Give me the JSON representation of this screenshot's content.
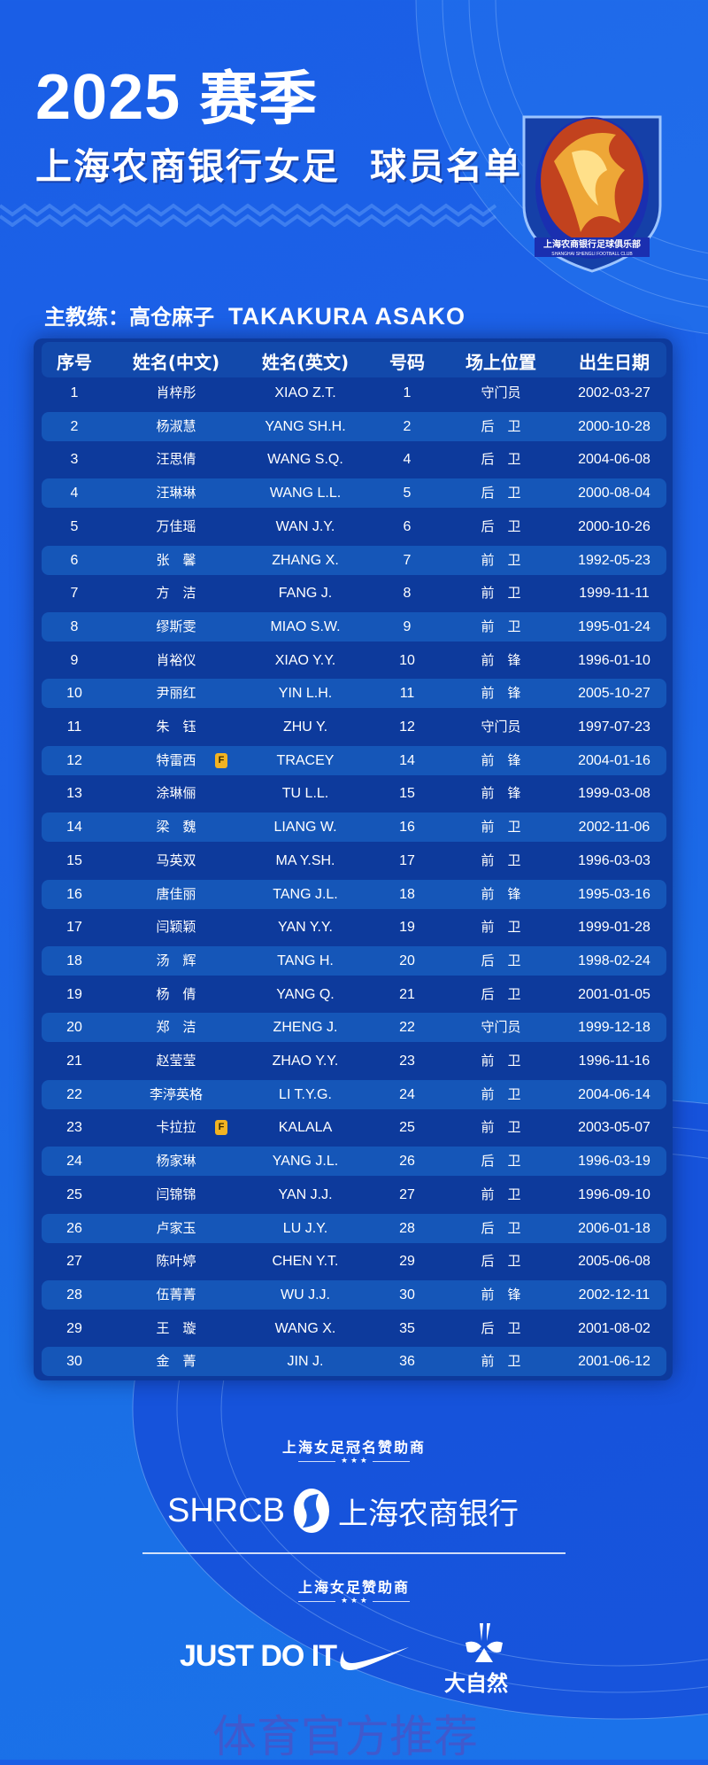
{
  "header": {
    "season_year": "2025",
    "season_label": "赛季",
    "team_name": "上海农商银行女足",
    "roster_label": "球员名单",
    "crest_text": "上海农商银行足球俱乐部",
    "crest_subtext": "SHANGHAI SHENGLI FOOTBALL CLUB"
  },
  "coach": {
    "label": "主教练：高仓麻子",
    "name_en": "TAKAKURA ASAKO"
  },
  "table": {
    "columns": [
      "序号",
      "姓名(中文)",
      "姓名(英文)",
      "号码",
      "场上位置",
      "出生日期"
    ],
    "foreign_badge": "F",
    "rows": [
      {
        "no": "1",
        "cn": "肖梓彤",
        "en": "XIAO Z.T.",
        "num": "1",
        "pos": "守门员",
        "dob": "2002-03-27"
      },
      {
        "no": "2",
        "cn": "杨淑慧",
        "en": "YANG SH.H.",
        "num": "2",
        "pos": "后　卫",
        "dob": "2000-10-28"
      },
      {
        "no": "3",
        "cn": "汪思倩",
        "en": "WANG S.Q.",
        "num": "4",
        "pos": "后　卫",
        "dob": "2004-06-08"
      },
      {
        "no": "4",
        "cn": "汪琳琳",
        "en": "WANG L.L.",
        "num": "5",
        "pos": "后　卫",
        "dob": "2000-08-04"
      },
      {
        "no": "5",
        "cn": "万佳瑶",
        "en": "WAN J.Y.",
        "num": "6",
        "pos": "后　卫",
        "dob": "2000-10-26"
      },
      {
        "no": "6",
        "cn": "张　馨",
        "en": "ZHANG X.",
        "num": "7",
        "pos": "前　卫",
        "dob": "1992-05-23"
      },
      {
        "no": "7",
        "cn": "方　洁",
        "en": "FANG J.",
        "num": "8",
        "pos": "前　卫",
        "dob": "1999-11-11"
      },
      {
        "no": "8",
        "cn": "缪斯雯",
        "en": "MIAO S.W.",
        "num": "9",
        "pos": "前　卫",
        "dob": "1995-01-24"
      },
      {
        "no": "9",
        "cn": "肖裕仪",
        "en": "XIAO Y.Y.",
        "num": "10",
        "pos": "前　锋",
        "dob": "1996-01-10"
      },
      {
        "no": "10",
        "cn": "尹丽红",
        "en": "YIN L.H.",
        "num": "11",
        "pos": "前　锋",
        "dob": "2005-10-27"
      },
      {
        "no": "11",
        "cn": "朱　钰",
        "en": "ZHU Y.",
        "num": "12",
        "pos": "守门员",
        "dob": "1997-07-23"
      },
      {
        "no": "12",
        "cn": "特雷西",
        "en": "TRACEY",
        "num": "14",
        "pos": "前　锋",
        "dob": "2004-01-16",
        "foreign": true
      },
      {
        "no": "13",
        "cn": "涂琳俪",
        "en": "TU L.L.",
        "num": "15",
        "pos": "前　锋",
        "dob": "1999-03-08"
      },
      {
        "no": "14",
        "cn": "梁　魏",
        "en": "LIANG W.",
        "num": "16",
        "pos": "前　卫",
        "dob": "2002-11-06"
      },
      {
        "no": "15",
        "cn": "马英双",
        "en": "MA Y.SH.",
        "num": "17",
        "pos": "前　卫",
        "dob": "1996-03-03"
      },
      {
        "no": "16",
        "cn": "唐佳丽",
        "en": "TANG J.L.",
        "num": "18",
        "pos": "前　锋",
        "dob": "1995-03-16"
      },
      {
        "no": "17",
        "cn": "闫颖颖",
        "en": "YAN Y.Y.",
        "num": "19",
        "pos": "前　卫",
        "dob": "1999-01-28"
      },
      {
        "no": "18",
        "cn": "汤　辉",
        "en": "TANG H.",
        "num": "20",
        "pos": "后　卫",
        "dob": "1998-02-24"
      },
      {
        "no": "19",
        "cn": "杨　倩",
        "en": "YANG Q.",
        "num": "21",
        "pos": "后　卫",
        "dob": "2001-01-05"
      },
      {
        "no": "20",
        "cn": "郑　洁",
        "en": "ZHENG J.",
        "num": "22",
        "pos": "守门员",
        "dob": "1999-12-18"
      },
      {
        "no": "21",
        "cn": "赵莹莹",
        "en": "ZHAO Y.Y.",
        "num": "23",
        "pos": "前　卫",
        "dob": "1996-11-16"
      },
      {
        "no": "22",
        "cn": "李渟英格",
        "en": "LI T.Y.G.",
        "num": "24",
        "pos": "前　卫",
        "dob": "2004-06-14"
      },
      {
        "no": "23",
        "cn": "卡拉拉",
        "en": "KALALA",
        "num": "25",
        "pos": "前　卫",
        "dob": "2003-05-07",
        "foreign": true
      },
      {
        "no": "24",
        "cn": "杨家琳",
        "en": "YANG J.L.",
        "num": "26",
        "pos": "后　卫",
        "dob": "1996-03-19"
      },
      {
        "no": "25",
        "cn": "闫锦锦",
        "en": "YAN J.J.",
        "num": "27",
        "pos": "前　卫",
        "dob": "1996-09-10"
      },
      {
        "no": "26",
        "cn": "卢家玉",
        "en": "LU J.Y.",
        "num": "28",
        "pos": "后　卫",
        "dob": "2006-01-18"
      },
      {
        "no": "27",
        "cn": "陈叶婷",
        "en": "CHEN Y.T.",
        "num": "29",
        "pos": "后　卫",
        "dob": "2005-06-08"
      },
      {
        "no": "28",
        "cn": "伍菁菁",
        "en": "WU J.J.",
        "num": "30",
        "pos": "前　锋",
        "dob": "2002-12-11"
      },
      {
        "no": "29",
        "cn": "王　璇",
        "en": "WANG X.",
        "num": "35",
        "pos": "后　卫",
        "dob": "2001-08-02"
      },
      {
        "no": "30",
        "cn": "金　菁",
        "en": "JIN J.",
        "num": "36",
        "pos": "前　卫",
        "dob": "2001-06-12"
      }
    ]
  },
  "sponsors": {
    "title_sponsor_label": "上海女足冠名赞助商",
    "title_sponsor_en": "SHRCB",
    "title_sponsor_cn": "上海农商银行",
    "sponsor_label": "上海女足赞助商",
    "stars": "★ ★ ★",
    "nike_slogan": "JUST DO IT",
    "dzr_name": "大自然"
  },
  "watermark": "体育官方推荐",
  "colors": {
    "background": "#1d63e8",
    "panel": "#0d3a9c",
    "row_alt": "#1556b8",
    "badge": "#f2b322"
  }
}
